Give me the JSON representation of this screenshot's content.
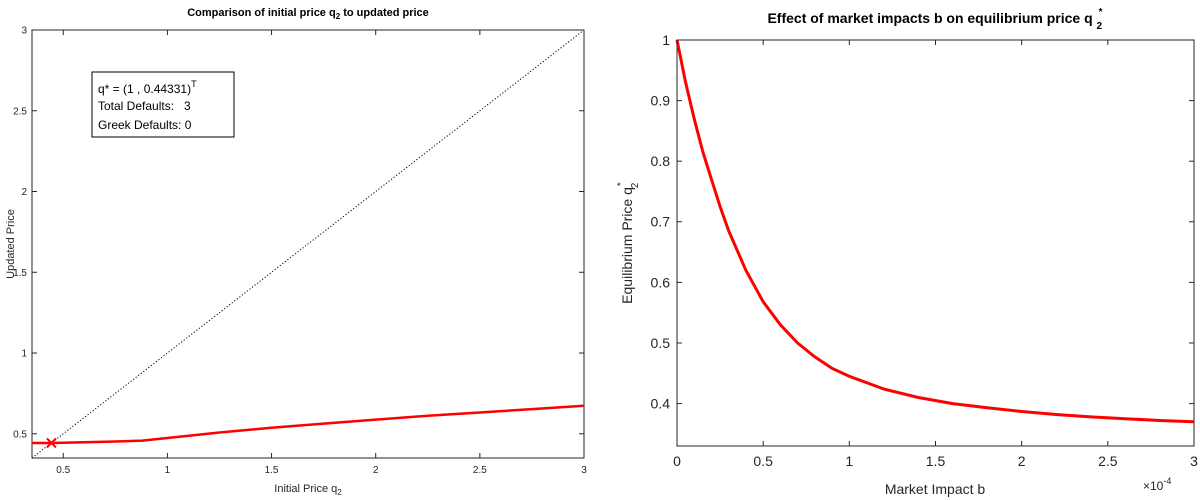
{
  "colors": {
    "series": "#ff0000",
    "diagonal": "#000000",
    "axis": "#262626"
  },
  "chart_data": [
    {
      "type": "line",
      "title": "Comparison of initial price q",
      "title_sub": "2",
      "title_suffix": " to updated price",
      "xlabel": "Initial Price q",
      "xlabel_sub": "2",
      "ylabel": "Updated Price",
      "xlim": [
        0.35,
        3
      ],
      "ylim": [
        0.35,
        3
      ],
      "xticks": [
        0.5,
        1,
        1.5,
        2,
        2.5,
        3
      ],
      "xtick_labels": [
        "0.5",
        "1",
        "1.5",
        "2",
        "2.5",
        "3"
      ],
      "yticks": [
        0.5,
        1,
        1.5,
        2,
        2.5,
        3
      ],
      "ytick_labels": [
        "0.5",
        "1",
        "1.5",
        "2",
        "2.5",
        "3"
      ],
      "grid": false,
      "series": [
        {
          "style": "solid-red",
          "x": [
            0.35,
            0.45,
            0.6,
            0.75,
            0.88,
            1.0,
            1.25,
            1.5,
            1.75,
            2.0,
            2.25,
            2.5,
            2.75,
            3.0
          ],
          "y": [
            0.443,
            0.443,
            0.447,
            0.452,
            0.458,
            0.474,
            0.508,
            0.537,
            0.563,
            0.588,
            0.611,
            0.632,
            0.653,
            0.673
          ]
        },
        {
          "style": "dotted-black",
          "x": [
            0.35,
            3.0
          ],
          "y": [
            0.35,
            3.0
          ]
        }
      ],
      "marker": {
        "x": 0.44331,
        "y": 0.44331,
        "symbol": "x"
      },
      "annotation": {
        "line1_main": "q* = (1 , 0.44331)",
        "line1_sup": "T",
        "line2": "Total Defaults:   3",
        "line3": "Greek Defaults: 0"
      }
    },
    {
      "type": "line",
      "title": "Effect of market impacts b on equilibrium price q",
      "title_sup": "*",
      "title_sub": "2",
      "xlabel": "Market Impact b",
      "ylabel": "Equilibrium Price q",
      "ylabel_sup": "*",
      "ylabel_sub": "2",
      "xlim": [
        0,
        3
      ],
      "ylim": [
        0.33,
        1
      ],
      "xticks": [
        0,
        0.5,
        1,
        1.5,
        2,
        2.5,
        3
      ],
      "xtick_labels": [
        "0",
        "0.5",
        "1",
        "1.5",
        "2",
        "2.5",
        "3"
      ],
      "yticks": [
        0.4,
        0.5,
        0.6,
        0.7,
        0.8,
        0.9,
        1
      ],
      "ytick_labels": [
        "0.4",
        "0.5",
        "0.6",
        "0.7",
        "0.8",
        "0.9",
        "1"
      ],
      "x_exponent_base": "×10",
      "x_exponent_power": "-4",
      "grid": false,
      "series": [
        {
          "style": "solid-red",
          "x": [
            0,
            0.05,
            0.1,
            0.15,
            0.2,
            0.25,
            0.3,
            0.4,
            0.5,
            0.6,
            0.7,
            0.8,
            0.9,
            1.0,
            1.2,
            1.4,
            1.6,
            1.8,
            2.0,
            2.2,
            2.4,
            2.6,
            2.8,
            3.0
          ],
          "y": [
            1.0,
            0.93,
            0.87,
            0.815,
            0.77,
            0.725,
            0.685,
            0.62,
            0.568,
            0.53,
            0.5,
            0.477,
            0.458,
            0.445,
            0.424,
            0.41,
            0.4,
            0.393,
            0.387,
            0.382,
            0.378,
            0.375,
            0.372,
            0.37
          ]
        }
      ]
    }
  ]
}
